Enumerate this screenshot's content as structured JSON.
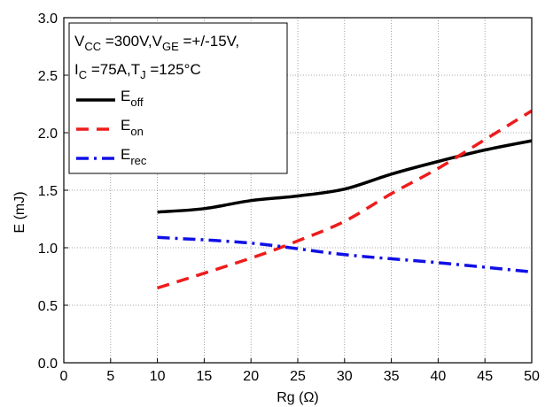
{
  "chart_data": {
    "type": "line",
    "xlabel": "Rg (Ω)",
    "ylabel": "E (mJ)",
    "xlim": [
      0,
      50
    ],
    "ylim": [
      0,
      3.0
    ],
    "x_ticks": [
      "0",
      "5",
      "10",
      "15",
      "20",
      "25",
      "30",
      "35",
      "40",
      "45",
      "50"
    ],
    "y_ticks": [
      "0.0",
      "0.5",
      "1.0",
      "1.5",
      "2.0",
      "2.5",
      "3.0"
    ],
    "grid": true,
    "legend_position": "top-left",
    "conditions": {
      "line1": {
        "v1": "V",
        "s1": "CC",
        "t1": " =300V,V",
        "s2": "GE",
        "t2": " =+/-15V,"
      },
      "line2": {
        "v1": "I",
        "s1": "C",
        "t1": " =75A,T",
        "s2": "J",
        "t2": " =125°C"
      }
    },
    "series": [
      {
        "key": "off",
        "name": "E",
        "sub": "off",
        "color": "#000000",
        "style": "solid",
        "x": [
          10,
          15,
          20,
          25,
          30,
          35,
          40,
          45,
          50
        ],
        "y": [
          1.31,
          1.34,
          1.41,
          1.45,
          1.51,
          1.64,
          1.75,
          1.85,
          1.93
        ]
      },
      {
        "key": "on",
        "name": "E",
        "sub": "on",
        "color": "#ee1c1c",
        "style": "dashed",
        "x": [
          10,
          20,
          25,
          30,
          35,
          40,
          45,
          50
        ],
        "y": [
          0.65,
          0.91,
          1.06,
          1.23,
          1.47,
          1.69,
          1.94,
          2.19
        ]
      },
      {
        "key": "rec",
        "name": "E",
        "sub": "rec",
        "color": "#1010e6",
        "style": "dashdot",
        "x": [
          10,
          20,
          30,
          40,
          50
        ],
        "y": [
          1.09,
          1.04,
          0.94,
          0.87,
          0.79
        ]
      }
    ]
  }
}
